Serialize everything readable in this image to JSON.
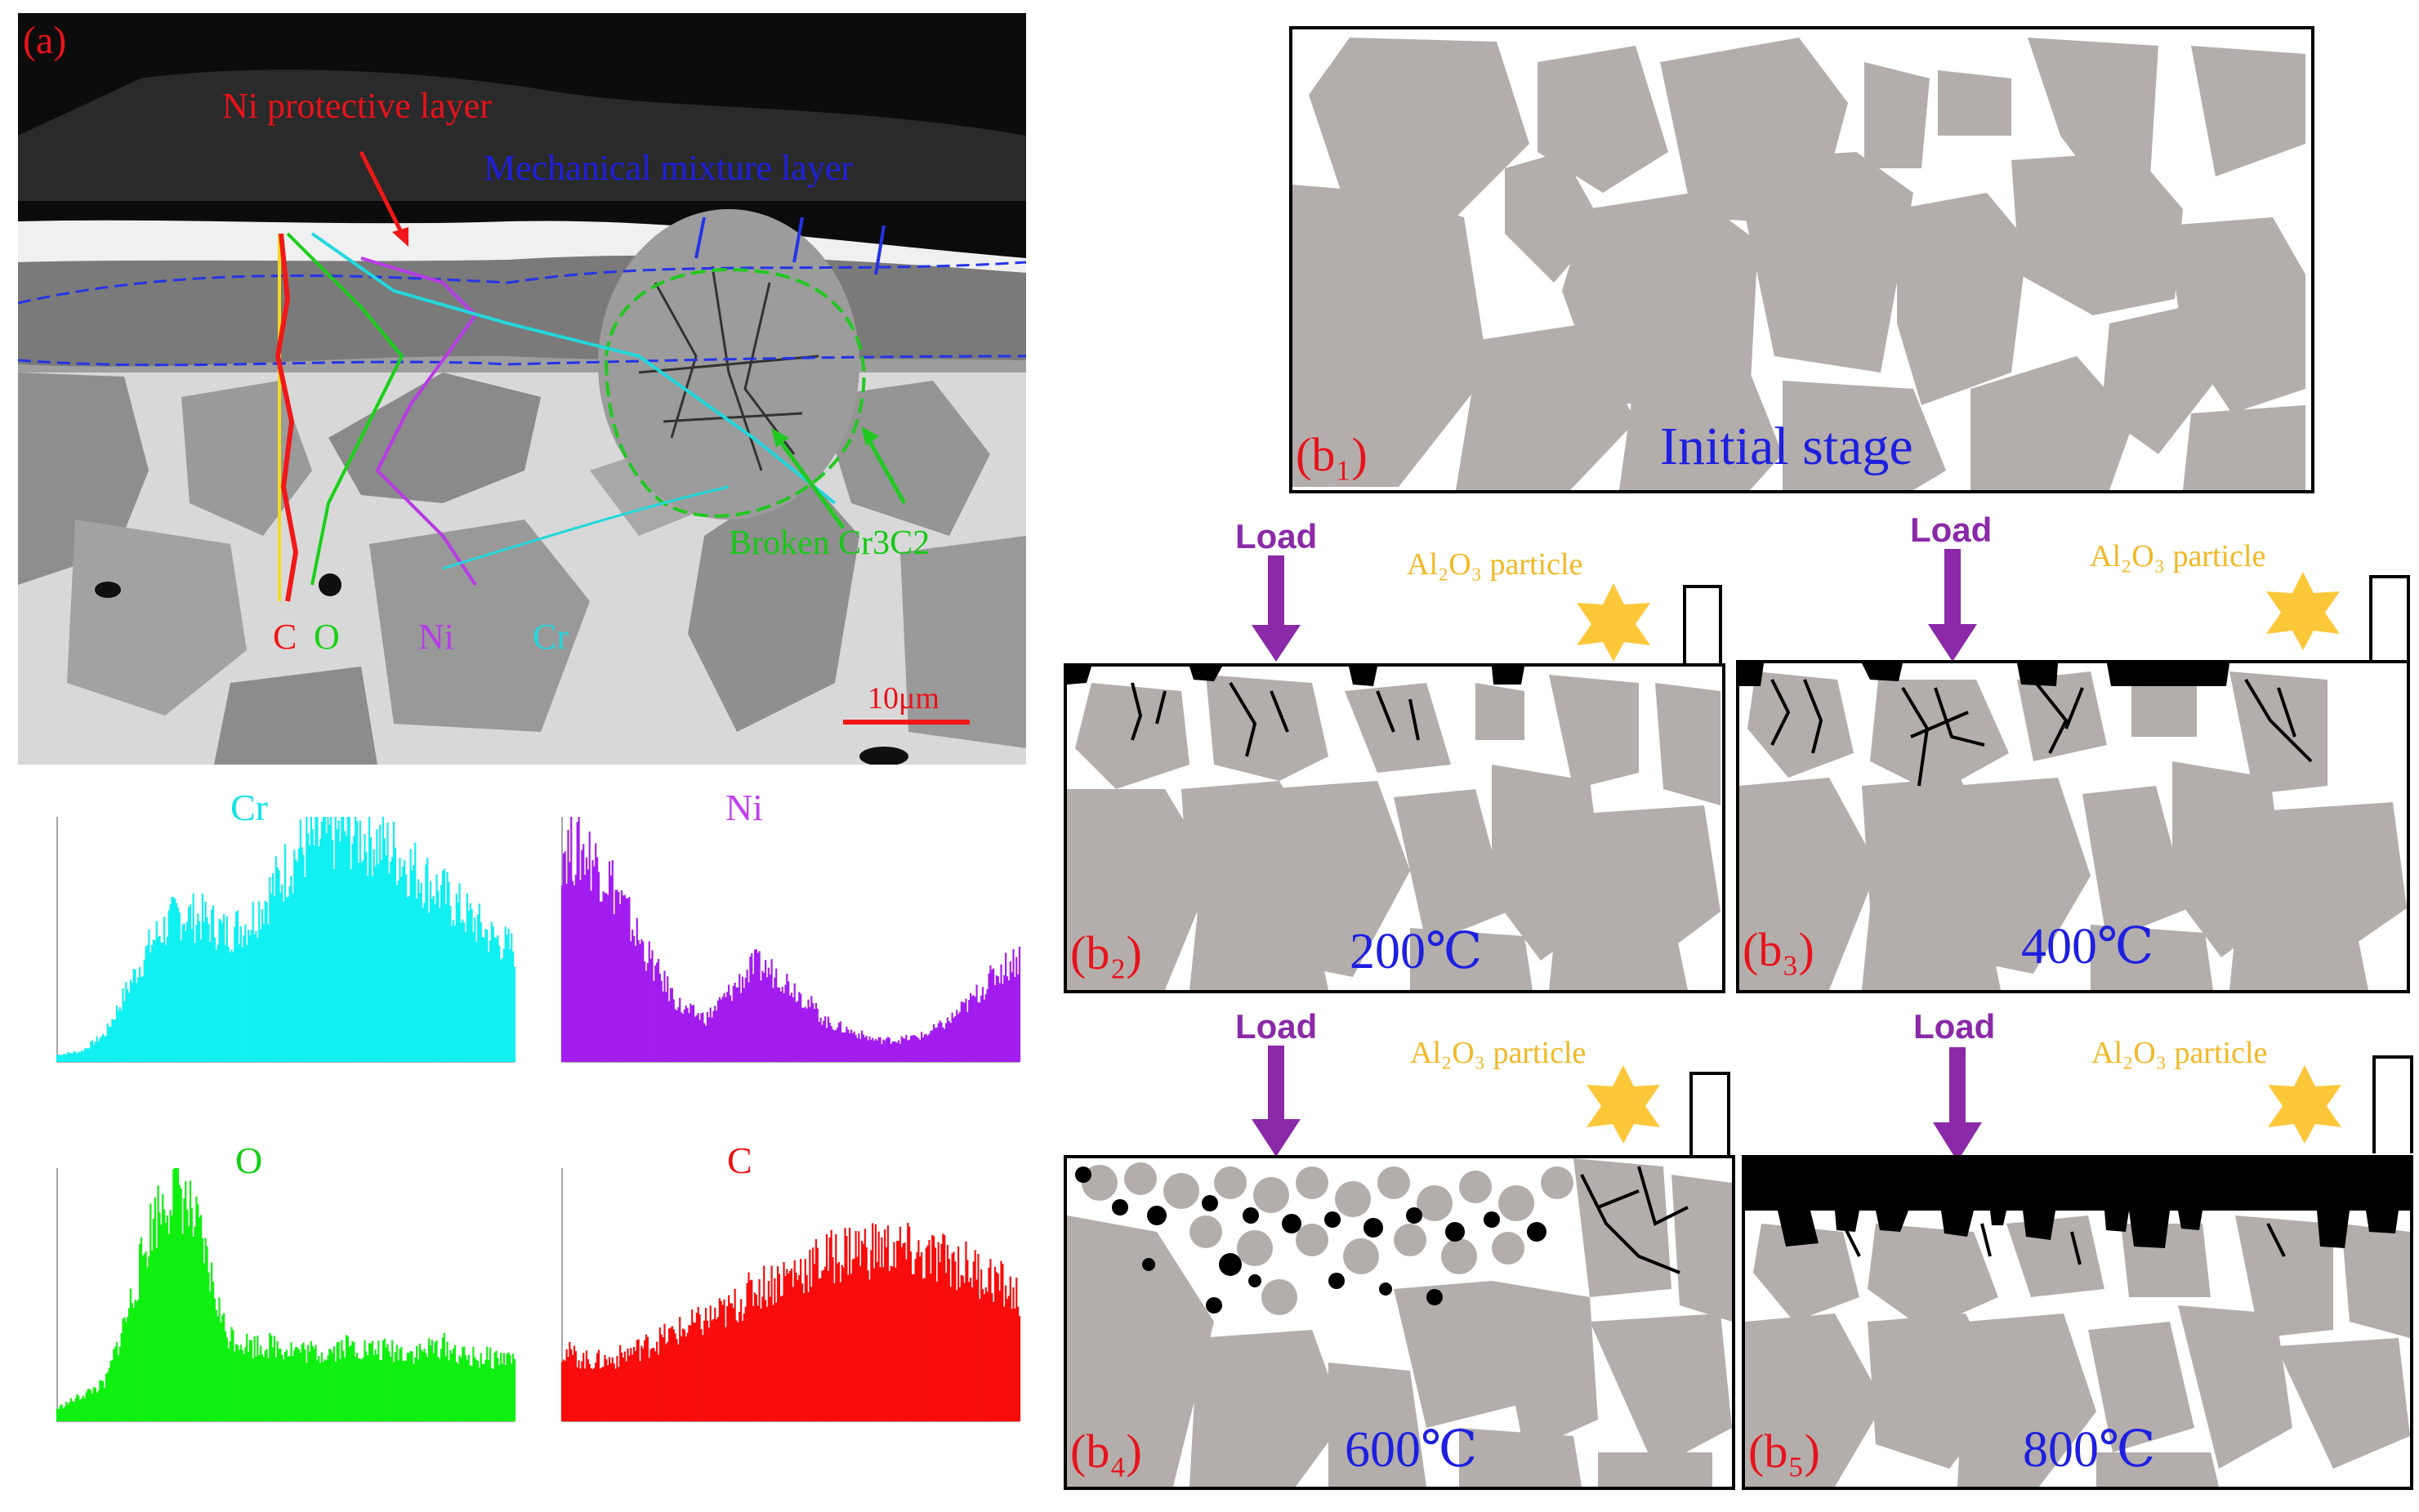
{
  "panel_a": {
    "tag": "(a)",
    "ni_layer": "Ni protective layer",
    "mix_layer": "Mechanical mixture layer",
    "broken": "Broken Cr3C2",
    "elements": [
      "C",
      "O",
      "Ni",
      "Cr"
    ],
    "scale": "10μm",
    "colors": {
      "C": "#f01818",
      "O": "#18d018",
      "Ni": "#b63ce6",
      "Cr": "#22d8dc"
    }
  },
  "charts": [
    {
      "title": "Cr",
      "color": "#10f0f0",
      "title_color": "#10e4e8"
    },
    {
      "title": "Ni",
      "color": "#a21cf0",
      "title_color": "#c040f0"
    },
    {
      "title": "O",
      "color": "#10f010",
      "title_color": "#10d010"
    },
    {
      "title": "C",
      "color": "#f80c0c",
      "title_color": "#f01010"
    }
  ],
  "chart_data": [
    {
      "type": "area",
      "title": "Cr",
      "xlim": [
        0,
        19
      ],
      "ylim": [
        0,
        350
      ],
      "x": [
        0,
        1,
        2,
        3,
        4,
        5,
        6,
        7,
        8,
        9,
        10,
        11,
        12,
        13,
        14,
        15,
        16,
        17,
        18,
        19
      ],
      "values": [
        10,
        15,
        40,
        110,
        175,
        210,
        205,
        185,
        200,
        250,
        300,
        320,
        330,
        320,
        300,
        270,
        240,
        210,
        180,
        160
      ]
    },
    {
      "type": "area",
      "title": "Ni",
      "xlim": [
        0,
        19
      ],
      "ylim": [
        0,
        280
      ],
      "x": [
        0,
        1,
        2,
        3,
        4,
        5,
        6,
        7,
        8,
        9,
        10,
        11,
        12,
        13,
        14,
        15,
        16,
        17,
        18,
        19
      ],
      "values": [
        245,
        240,
        210,
        150,
        100,
        60,
        50,
        80,
        110,
        100,
        75,
        45,
        35,
        25,
        25,
        30,
        45,
        70,
        100,
        120
      ]
    },
    {
      "type": "area",
      "title": "O",
      "xlim": [
        0,
        19
      ],
      "ylim": [
        0,
        100
      ],
      "x": [
        0,
        1,
        2,
        3,
        4,
        5,
        6,
        7,
        8,
        9,
        10,
        11,
        12,
        13,
        14,
        15,
        16,
        17,
        18,
        19
      ],
      "values": [
        5,
        10,
        15,
        45,
        80,
        95,
        70,
        35,
        30,
        30,
        28,
        27,
        30,
        28,
        28,
        27,
        30,
        25,
        25,
        25
      ]
    },
    {
      "type": "area",
      "title": "C",
      "xlim": [
        0,
        19
      ],
      "ylim": [
        0,
        25
      ],
      "x": [
        0,
        1,
        2,
        3,
        4,
        5,
        6,
        7,
        8,
        9,
        10,
        11,
        12,
        13,
        14,
        15,
        16,
        17,
        18,
        19
      ],
      "values": [
        7,
        6,
        6,
        7,
        8,
        9,
        10,
        11,
        13,
        14,
        15,
        16,
        17,
        17,
        17,
        16,
        16,
        15,
        14,
        12
      ]
    }
  ],
  "schematic": {
    "b1": {
      "tag": "(b₁)",
      "caption": "Initial stage"
    },
    "b2": {
      "tag": "(b₂)",
      "temp": "200℃"
    },
    "b3": {
      "tag": "(b₃)",
      "temp": "400℃"
    },
    "b4": {
      "tag": "(b₄)",
      "temp": "600℃"
    },
    "b5": {
      "tag": "(b₅)",
      "temp": "800℃"
    },
    "load": "Load",
    "al2o3": "Al₂O₃ particle"
  }
}
